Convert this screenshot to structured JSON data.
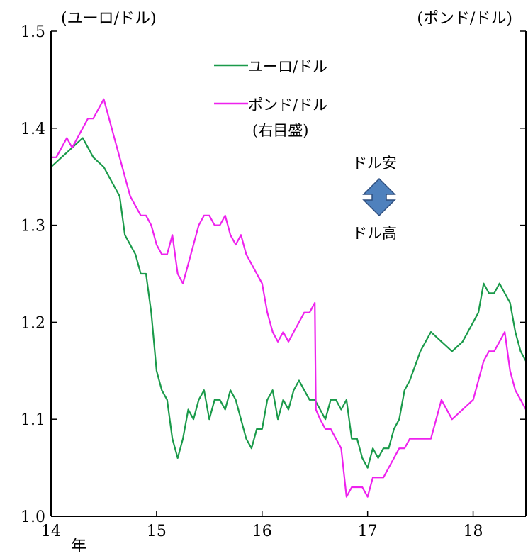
{
  "chart_data": {
    "type": "line",
    "left_axis_title": "(ユーロ/ドル)",
    "right_axis_title": "(ポンド/ドル)",
    "x_unit_label": "年",
    "x_ticks": [
      "14",
      "15",
      "16",
      "17",
      "18"
    ],
    "y_ticks": [
      "1.0",
      "1.1",
      "1.2",
      "1.3",
      "1.4",
      "1.5"
    ],
    "ylim": [
      1.0,
      1.5
    ],
    "xlim": [
      14.0,
      18.5
    ],
    "grid": false,
    "legend_position": "top-center",
    "annotations": {
      "dollar_weak": "ドル安",
      "dollar_strong": "ドル高",
      "pound_axis_note": "(右目盛)"
    },
    "series": [
      {
        "name": "ユーロ/ドル",
        "axis": "left",
        "color": "#1a9a4a",
        "x": [
          14.0,
          14.1,
          14.2,
          14.3,
          14.4,
          14.5,
          14.6,
          14.65,
          14.7,
          14.8,
          14.85,
          14.9,
          14.95,
          15.0,
          15.05,
          15.1,
          15.15,
          15.2,
          15.25,
          15.3,
          15.35,
          15.4,
          15.45,
          15.5,
          15.55,
          15.6,
          15.65,
          15.7,
          15.75,
          15.8,
          15.85,
          15.9,
          15.95,
          16.0,
          16.05,
          16.1,
          16.15,
          16.2,
          16.25,
          16.3,
          16.35,
          16.4,
          16.45,
          16.5,
          16.55,
          16.6,
          16.65,
          16.7,
          16.75,
          16.8,
          16.85,
          16.9,
          16.95,
          17.0,
          17.05,
          17.1,
          17.15,
          17.2,
          17.25,
          17.3,
          17.35,
          17.4,
          17.5,
          17.6,
          17.7,
          17.8,
          17.9,
          18.0,
          18.05,
          18.1,
          18.15,
          18.2,
          18.25,
          18.3,
          18.35,
          18.4,
          18.45,
          18.5
        ],
        "values": [
          1.36,
          1.37,
          1.38,
          1.39,
          1.37,
          1.36,
          1.34,
          1.33,
          1.29,
          1.27,
          1.25,
          1.25,
          1.21,
          1.15,
          1.13,
          1.12,
          1.08,
          1.06,
          1.08,
          1.11,
          1.1,
          1.12,
          1.13,
          1.1,
          1.12,
          1.12,
          1.11,
          1.13,
          1.12,
          1.1,
          1.08,
          1.07,
          1.09,
          1.09,
          1.12,
          1.13,
          1.1,
          1.12,
          1.11,
          1.13,
          1.14,
          1.13,
          1.12,
          1.12,
          1.11,
          1.1,
          1.12,
          1.12,
          1.11,
          1.12,
          1.08,
          1.08,
          1.06,
          1.05,
          1.07,
          1.06,
          1.07,
          1.07,
          1.09,
          1.1,
          1.13,
          1.14,
          1.17,
          1.19,
          1.18,
          1.17,
          1.18,
          1.2,
          1.21,
          1.24,
          1.23,
          1.23,
          1.24,
          1.23,
          1.22,
          1.19,
          1.17,
          1.16
        ]
      },
      {
        "name": "ポンド/ドル",
        "axis": "right",
        "color": "#ee22ee",
        "x": [
          14.0,
          14.05,
          14.1,
          14.15,
          14.2,
          14.25,
          14.3,
          14.35,
          14.4,
          14.45,
          14.5,
          14.55,
          14.6,
          14.65,
          14.7,
          14.75,
          14.8,
          14.85,
          14.9,
          14.95,
          15.0,
          15.05,
          15.1,
          15.15,
          15.2,
          15.25,
          15.3,
          15.35,
          15.4,
          15.45,
          15.5,
          15.55,
          15.6,
          15.65,
          15.7,
          15.75,
          15.8,
          15.85,
          15.9,
          15.95,
          16.0,
          16.05,
          16.1,
          16.15,
          16.2,
          16.25,
          16.3,
          16.35,
          16.4,
          16.45,
          16.5,
          16.51,
          16.55,
          16.6,
          16.65,
          16.7,
          16.75,
          16.8,
          16.85,
          16.9,
          16.95,
          17.0,
          17.05,
          17.1,
          17.15,
          17.2,
          17.25,
          17.3,
          17.35,
          17.4,
          17.5,
          17.6,
          17.7,
          17.8,
          17.9,
          18.0,
          18.05,
          18.1,
          18.15,
          18.2,
          18.25,
          18.3,
          18.35,
          18.4,
          18.45,
          18.5
        ],
        "values": [
          1.37,
          1.37,
          1.38,
          1.39,
          1.38,
          1.39,
          1.4,
          1.41,
          1.41,
          1.42,
          1.43,
          1.41,
          1.39,
          1.37,
          1.35,
          1.33,
          1.32,
          1.31,
          1.31,
          1.3,
          1.28,
          1.27,
          1.27,
          1.29,
          1.25,
          1.24,
          1.26,
          1.28,
          1.3,
          1.31,
          1.31,
          1.3,
          1.3,
          1.31,
          1.29,
          1.28,
          1.29,
          1.27,
          1.26,
          1.25,
          1.24,
          1.21,
          1.19,
          1.18,
          1.19,
          1.18,
          1.19,
          1.2,
          1.21,
          1.21,
          1.22,
          1.11,
          1.1,
          1.09,
          1.09,
          1.08,
          1.07,
          1.02,
          1.03,
          1.03,
          1.03,
          1.02,
          1.04,
          1.04,
          1.04,
          1.05,
          1.06,
          1.07,
          1.07,
          1.08,
          1.08,
          1.08,
          1.12,
          1.1,
          1.11,
          1.12,
          1.14,
          1.16,
          1.17,
          1.17,
          1.18,
          1.19,
          1.15,
          1.13,
          1.12,
          1.11
        ]
      }
    ]
  }
}
